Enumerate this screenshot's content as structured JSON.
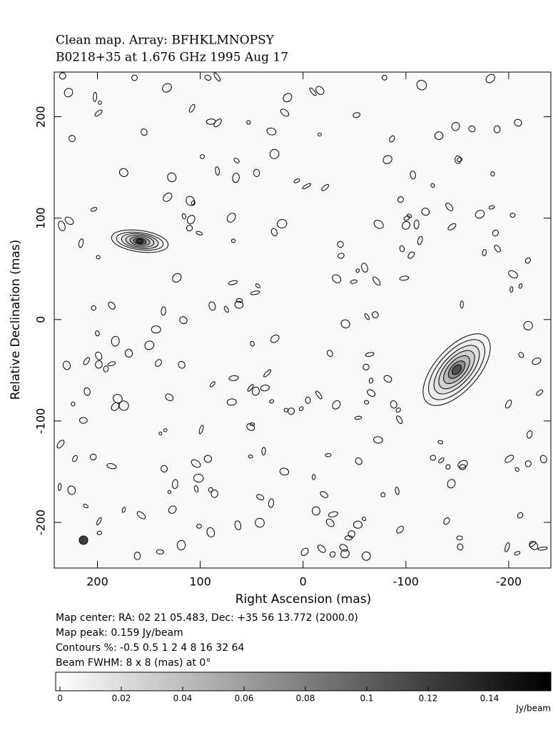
{
  "chart_data": {
    "type": "contour",
    "title": "Clean map.  Array: BFHKLMNOPSY",
    "subtitle": "B0218+35 at 1.676 GHz 1995 Aug 17",
    "x_label": "Right Ascension  (mas)",
    "y_label": "Relative Declination  (mas)",
    "xlim": [
      242,
      -241
    ],
    "ylim": [
      -245,
      244
    ],
    "xticks": [
      200,
      100,
      0,
      -100,
      -200
    ],
    "yticks": [
      -200,
      -100,
      0,
      100,
      200
    ],
    "notes": [
      "Map center:  RA: 02 21 05.483,  Dec: +35 56 13.772 (2000.0)",
      "Map peak: 0.159 Jy/beam",
      "Contours %: -0.5 0.5 1 2 4 8 16 32 64",
      "Beam FWHM: 8 x 8 (mas) at 0°"
    ],
    "colorbar": {
      "label": "Jy/beam",
      "lim": [
        -0.0014,
        0.16
      ],
      "ticks": [
        0,
        0.02,
        0.04,
        0.06,
        0.08,
        0.1,
        0.12,
        0.14
      ]
    }
  }
}
